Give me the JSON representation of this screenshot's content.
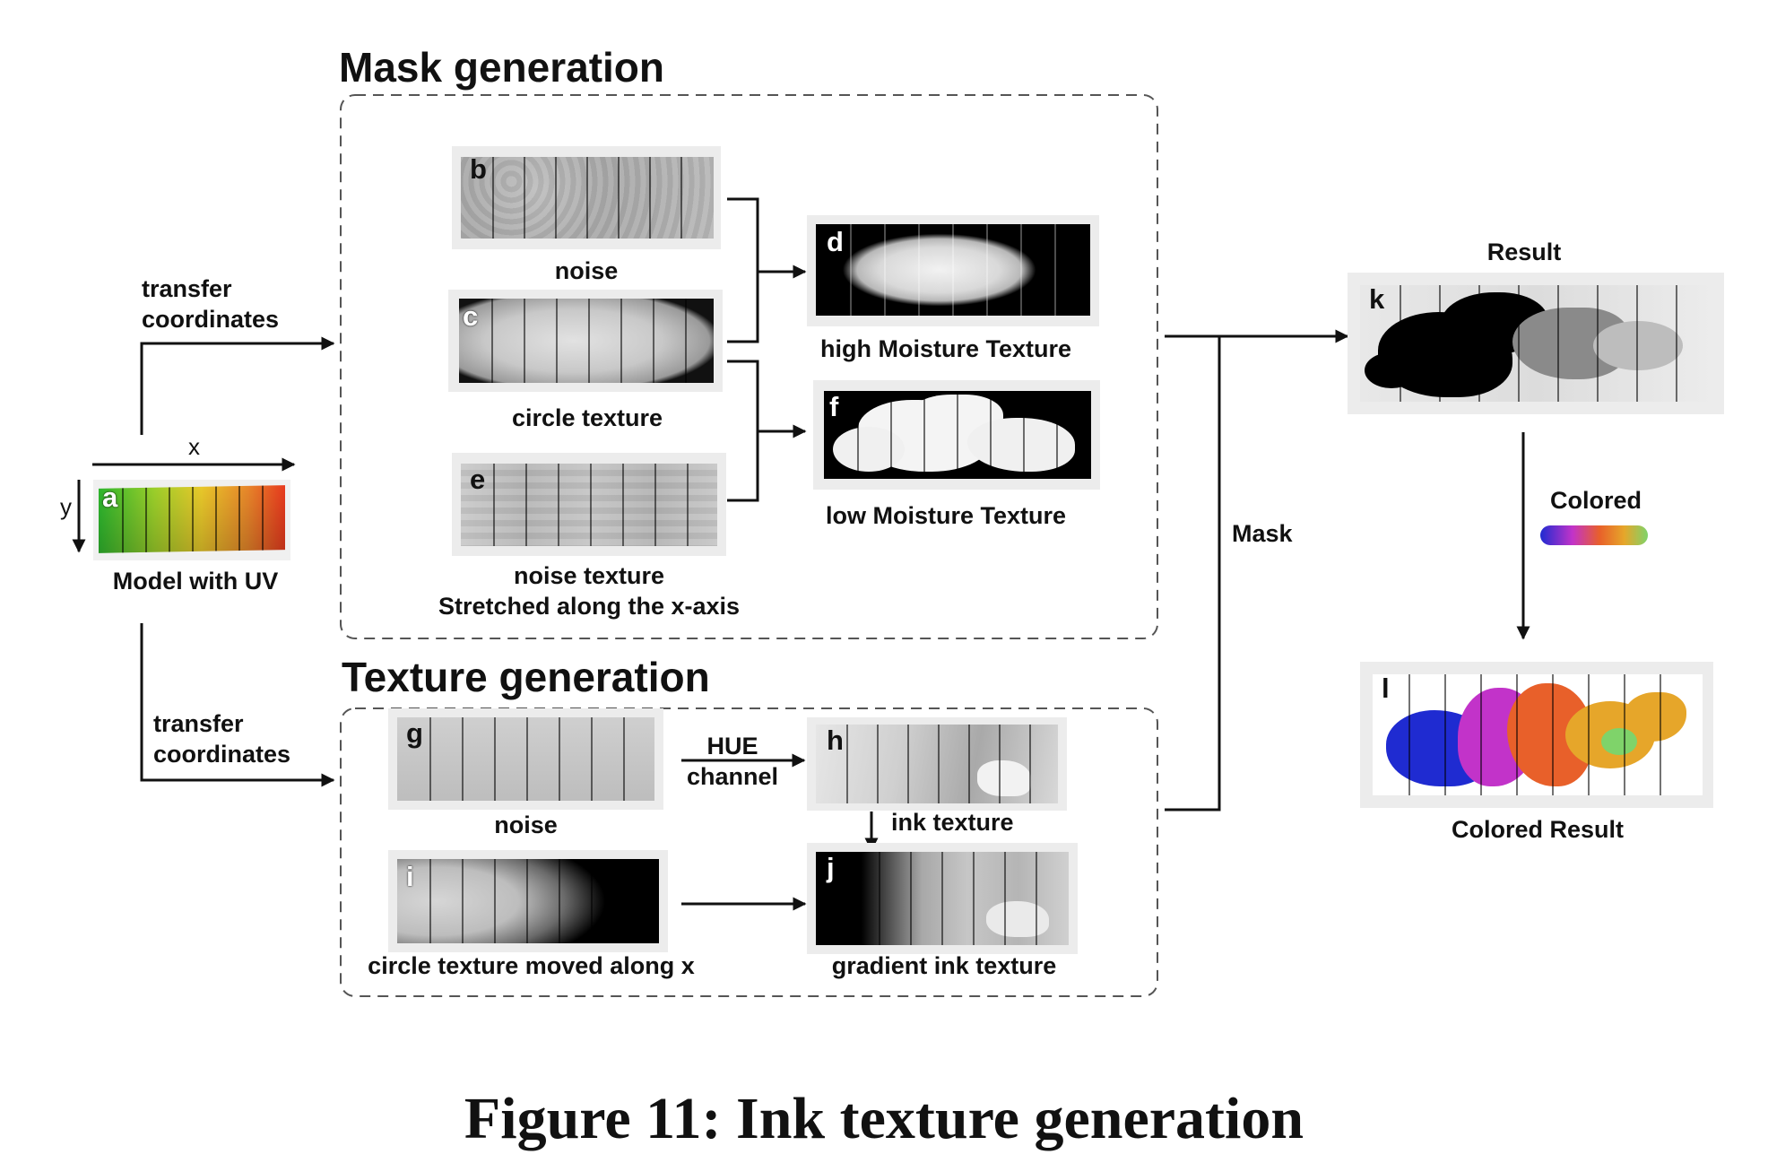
{
  "sections": {
    "mask_title": "Mask generation",
    "texture_title": "Texture generation"
  },
  "labels": {
    "transfer_top": "transfer\ncoordinates",
    "transfer_bottom": "transfer\ncoordinates",
    "axis_x": "x",
    "axis_y": "y",
    "model_uv": "Model with UV",
    "noise_b": "noise",
    "circle_c": "circle texture",
    "noise_texture_e": "noise texture",
    "stretched_e": "Stretched along the x-axis",
    "high_moisture": "high Moisture Texture",
    "low_moisture": "low Moisture Texture",
    "noise_g": "noise",
    "hue_channel": "HUE\nchannel",
    "ink_texture": "ink texture",
    "circle_moved": "circle texture moved along x",
    "gradient_ink": "gradient ink texture",
    "mask": "Mask",
    "result": "Result",
    "colored": "Colored",
    "colored_result": "Colored Result"
  },
  "panel_letters": {
    "a": "a",
    "b": "b",
    "c": "c",
    "d": "d",
    "e": "e",
    "f": "f",
    "g": "g",
    "h": "h",
    "i": "i",
    "j": "j",
    "k": "k",
    "l": "l"
  },
  "caption": "Figure 11: Ink texture generation",
  "colors": {
    "uv_gradient_start": "#2db52d",
    "uv_gradient_end": "#e83a1e",
    "rainbow": [
      "#1f2bd1",
      "#c233c9",
      "#e8602a",
      "#e6a62a",
      "#7fd36a"
    ],
    "ink_dark": "#000000"
  }
}
